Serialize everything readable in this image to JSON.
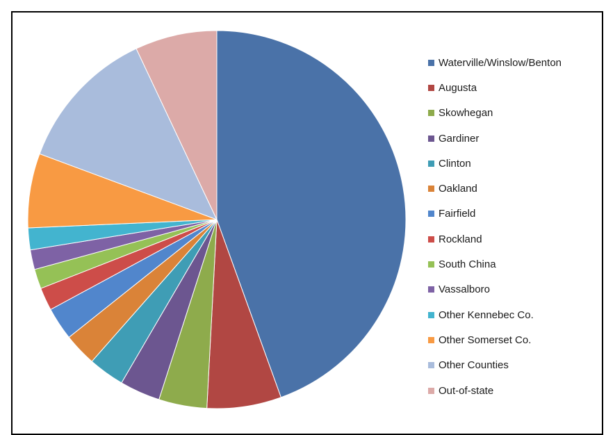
{
  "chart_data": {
    "type": "pie",
    "title": "",
    "legend_position": "right",
    "start_angle_deg": 0,
    "direction": "clockwise",
    "slices": [
      {
        "label": "Waterville/Winslow/Benton",
        "value": 47.6,
        "color": "#4a72a8"
      },
      {
        "label": "Augusta",
        "value": 6.8,
        "color": "#b14743"
      },
      {
        "label": "Skowhegan",
        "value": 4.4,
        "color": "#8eab4c"
      },
      {
        "label": "Gardiner",
        "value": 3.7,
        "color": "#6c5690"
      },
      {
        "label": "Clinton",
        "value": 3.3,
        "color": "#3f9db5"
      },
      {
        "label": "Oakland",
        "value": 3.0,
        "color": "#da8338"
      },
      {
        "label": "Fairfield",
        "value": 3.0,
        "color": "#5186cc"
      },
      {
        "label": "Rockland",
        "value": 2.1,
        "color": "#cd4d49"
      },
      {
        "label": "South China",
        "value": 1.8,
        "color": "#95c156"
      },
      {
        "label": "Vassalboro",
        "value": 1.8,
        "color": "#7e62a5"
      },
      {
        "label": "Other Kennebec Co.",
        "value": 2.0,
        "color": "#43b4cf"
      },
      {
        "label": "Other Somerset Co.",
        "value": 6.8,
        "color": "#f89a43"
      },
      {
        "label": "Other Counties",
        "value": 13.2,
        "color": "#a9bcdc"
      },
      {
        "label": "Out-of-state",
        "value": 7.5,
        "color": "#dcaaa8"
      }
    ]
  }
}
